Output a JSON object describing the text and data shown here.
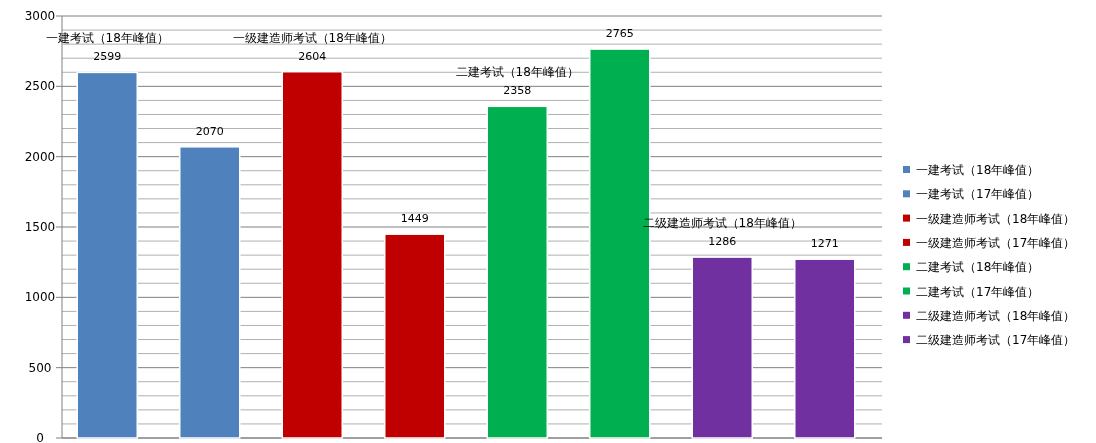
{
  "chart_data": {
    "type": "bar",
    "categories": [
      null,
      null,
      null,
      null,
      null,
      null,
      null,
      null
    ],
    "series": [
      {
        "name": "一建考试（18年峰值）",
        "color": "#4f81bd",
        "values": [
          2599,
          null,
          null,
          null,
          null,
          null,
          null,
          null
        ]
      },
      {
        "name": "一建考试（17年峰值）",
        "color": "#4f81bd",
        "values": [
          null,
          2070,
          null,
          null,
          null,
          null,
          null,
          null
        ]
      },
      {
        "name": "一级建造师考试（18年峰值）",
        "color": "#c00000",
        "values": [
          null,
          null,
          2604,
          null,
          null,
          null,
          null,
          null
        ]
      },
      {
        "name": "一级建造师考试（17年峰值）",
        "color": "#c00000",
        "values": [
          null,
          null,
          null,
          1449,
          null,
          null,
          null,
          null
        ]
      },
      {
        "name": "二建考试（18年峰值）",
        "color": "#00b050",
        "values": [
          null,
          null,
          null,
          null,
          2358,
          null,
          null,
          null
        ]
      },
      {
        "name": "二建考试（17年峰值）",
        "color": "#00b050",
        "values": [
          null,
          null,
          null,
          null,
          null,
          2765,
          null,
          null
        ]
      },
      {
        "name": "二级建造师考试（18年峰值）",
        "color": "#7030a0",
        "values": [
          null,
          null,
          null,
          null,
          null,
          null,
          1286,
          null
        ]
      },
      {
        "name": "二级建造师考试（17年峰值）",
        "color": "#7030a0",
        "values": [
          null,
          null,
          null,
          null,
          null,
          null,
          null,
          1271
        ]
      }
    ],
    "annotations": [
      "一建考试（18年峰值）",
      "一级建造师考试（18年峰值）",
      "二建考试（18年峰值）",
      "二级建造师考试（18年峰值）"
    ],
    "ylim": [
      0,
      3000
    ],
    "yticks": [
      0,
      500,
      1000,
      1500,
      2000,
      2500,
      3000
    ],
    "grid": "y",
    "legend": "right",
    "data_labels": true
  }
}
